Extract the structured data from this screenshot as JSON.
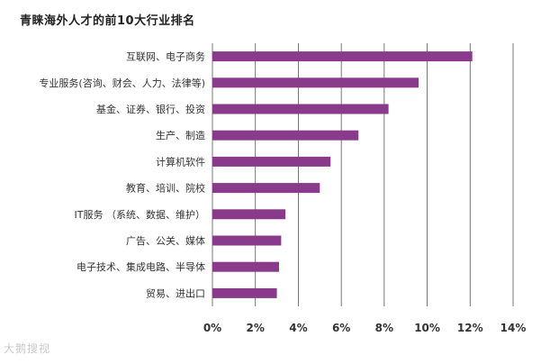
{
  "chart_data": {
    "type": "bar",
    "orientation": "horizontal",
    "title": "青睐海外人才的前10大行业排名",
    "categories": [
      "互联网、电子商务",
      "专业服务(咨询、财会、人力、法律等)",
      "基金、证券、银行、投资",
      "生产、制造",
      "计算机软件",
      "教育、培训、院校",
      "IT服务 （系统、数据、维护）",
      "广告、公关、媒体",
      "电子技术、集成电路、半导体",
      "贸易、进出口"
    ],
    "values": [
      12.1,
      9.6,
      8.2,
      6.8,
      5.5,
      5.0,
      3.4,
      3.2,
      3.1,
      3.0
    ],
    "xlim": [
      0,
      14
    ],
    "xticks": [
      0,
      2,
      4,
      6,
      8,
      10,
      12,
      14
    ],
    "xtick_labels": [
      "0%",
      "2%",
      "4%",
      "6%",
      "8%",
      "10%",
      "12%",
      "14%"
    ],
    "xlabel": "",
    "ylabel": "",
    "grid": true,
    "bar_color": "#8a3a8a"
  },
  "watermark": "大鹅搜视"
}
